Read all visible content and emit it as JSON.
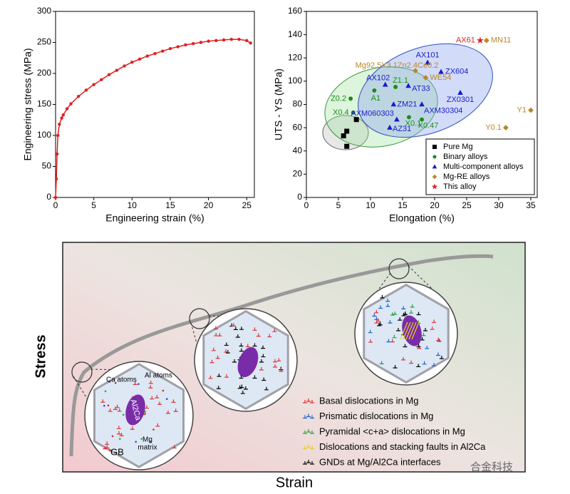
{
  "chart_data": [
    {
      "type": "line",
      "xlabel": "Engineering strain (%)",
      "ylabel": "Engineering stress (MPa)",
      "x": [
        0,
        0.1,
        0.2,
        0.3,
        0.5,
        0.8,
        1,
        1.5,
        2,
        3,
        4,
        5,
        6,
        7,
        8,
        9,
        10,
        11,
        12,
        13,
        14,
        15,
        16,
        17,
        18,
        19,
        20,
        21,
        22,
        23,
        24,
        25,
        25.5
      ],
      "values": [
        0,
        30,
        70,
        100,
        118,
        128,
        133,
        143,
        151,
        163,
        173,
        182,
        190,
        198,
        205,
        212,
        218,
        223,
        228,
        232,
        236,
        240,
        243,
        246,
        248,
        250,
        252,
        253,
        254,
        255,
        255,
        253,
        249
      ],
      "color": "#e02020",
      "marker": "circle",
      "xlim": [
        0,
        26
      ],
      "xticks": [
        0,
        5,
        10,
        15,
        20,
        25
      ],
      "ylim": [
        0,
        300
      ],
      "yticks": [
        0,
        50,
        100,
        150,
        200,
        250,
        300
      ]
    },
    {
      "type": "scatter",
      "xlabel": "Elongation (%)",
      "ylabel": "UTS - YS (MPa)",
      "xlim": [
        0,
        36
      ],
      "xticks": [
        0,
        5,
        10,
        15,
        20,
        25,
        30,
        35
      ],
      "ylim": [
        0,
        160
      ],
      "yticks": [
        0,
        20,
        40,
        60,
        80,
        100,
        120,
        140,
        160
      ],
      "legend": "lower right",
      "series": [
        {
          "name": "Pure Mg",
          "color": "#000000",
          "marker": "square",
          "x": [
            5.8,
            6.3,
            6.3,
            7.8
          ],
          "values": [
            53,
            57,
            44,
            67
          ]
        },
        {
          "name": "Binary alloys",
          "color": "#1a8c1a",
          "marker": "circle",
          "x": [
            6.9,
            10.6,
            7.3,
            13.9,
            16,
            18
          ],
          "values": [
            85,
            92,
            73,
            95,
            69,
            67
          ],
          "labels": [
            "Z0.2",
            "A1",
            "X0.4",
            "Z1.1",
            "X0.1",
            "X0.47"
          ]
        },
        {
          "name": "Multi-component alloys",
          "color": "#1a1acc",
          "marker": "triangle",
          "x": [
            18.9,
            12.3,
            15.9,
            21,
            24,
            13.6,
            18,
            14.1,
            13
          ],
          "values": [
            116,
            97,
            96,
            108,
            90,
            80,
            80,
            67,
            60
          ],
          "labels": [
            "AX101",
            "AX102",
            "AT33",
            "ZX604",
            "ZX0301",
            "ZM21",
            "AXM30304",
            "AXM060303",
            "AZ31"
          ]
        },
        {
          "name": "Mg-RE alloys",
          "color": "#b8862b",
          "marker": "diamond",
          "x": [
            17,
            18.6,
            35,
            31.1,
            28.1
          ],
          "values": [
            109,
            103,
            75,
            60,
            135
          ],
          "labels": [
            "Mg92.5Y3.1Zn2.4Ce0.2",
            "WE54",
            "Y1",
            "Y0.1",
            "MN11"
          ]
        },
        {
          "name": "This alloy",
          "color": "#e02020",
          "marker": "star",
          "x": [
            27.1
          ],
          "values": [
            135
          ],
          "labels": [
            "AX61"
          ]
        }
      ]
    }
  ],
  "diagram": {
    "y_label": "Stress",
    "x_label": "Strain",
    "annotations": {
      "ca_atoms": "Ca atoms",
      "al_atoms": "Al atoms",
      "phase": "Al2Ca",
      "mg_matrix": [
        "Mg",
        "matrix"
      ],
      "gb": "GB"
    },
    "legend": [
      {
        "label": "Basal dislocations in Mg",
        "color": "#e03030"
      },
      {
        "label": "Prismatic dislocations in Mg",
        "color": "#2060d0"
      },
      {
        "label": "Pyramidal <c+a> dislocations in Mg",
        "color": "#20a040"
      },
      {
        "label": "Dislocations and stacking faults in Al2Ca",
        "color": "#e8d020"
      },
      {
        "label": "GNDs at Mg/Al2Ca interfaces",
        "color": "#000000"
      }
    ]
  },
  "watermark": "合金科技"
}
